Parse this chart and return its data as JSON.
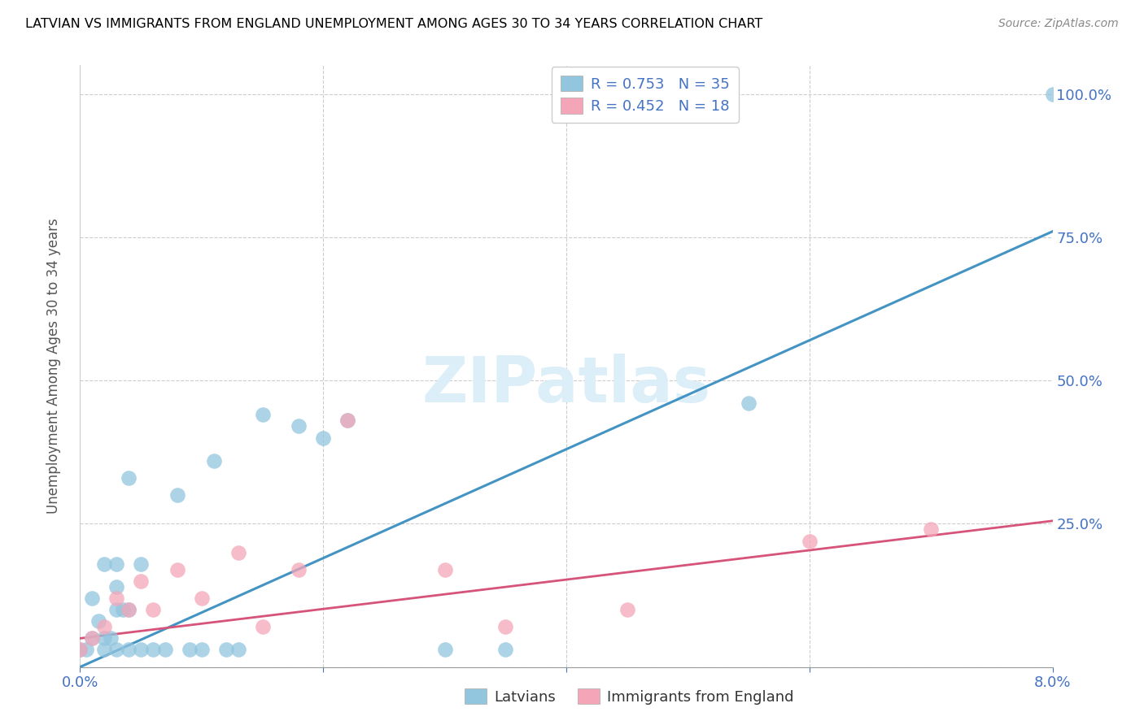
{
  "title": "LATVIAN VS IMMIGRANTS FROM ENGLAND UNEMPLOYMENT AMONG AGES 30 TO 34 YEARS CORRELATION CHART",
  "source": "Source: ZipAtlas.com",
  "ylabel": "Unemployment Among Ages 30 to 34 years",
  "xlim": [
    0.0,
    0.08
  ],
  "ylim": [
    0.0,
    1.05
  ],
  "yticks": [
    0.0,
    0.25,
    0.5,
    0.75,
    1.0
  ],
  "ytick_labels": [
    "",
    "25.0%",
    "50.0%",
    "75.0%",
    "100.0%"
  ],
  "blue_R": 0.753,
  "blue_N": 35,
  "pink_R": 0.452,
  "pink_N": 18,
  "blue_color": "#92c5de",
  "pink_color": "#f4a6b8",
  "blue_line_color": "#4393c3",
  "pink_line_color": "#d6537a",
  "watermark_color": "#dceef8",
  "latvian_x": [
    0.0,
    0.0005,
    0.001,
    0.001,
    0.0015,
    0.002,
    0.002,
    0.002,
    0.0025,
    0.003,
    0.003,
    0.003,
    0.003,
    0.0035,
    0.004,
    0.004,
    0.004,
    0.005,
    0.005,
    0.006,
    0.007,
    0.008,
    0.009,
    0.01,
    0.011,
    0.012,
    0.013,
    0.015,
    0.018,
    0.02,
    0.022,
    0.03,
    0.035,
    0.055,
    0.08
  ],
  "latvian_y": [
    0.03,
    0.03,
    0.05,
    0.12,
    0.08,
    0.03,
    0.05,
    0.18,
    0.05,
    0.03,
    0.1,
    0.14,
    0.18,
    0.1,
    0.03,
    0.1,
    0.33,
    0.03,
    0.18,
    0.03,
    0.03,
    0.3,
    0.03,
    0.03,
    0.36,
    0.03,
    0.03,
    0.44,
    0.42,
    0.4,
    0.43,
    0.03,
    0.03,
    0.46,
    1.0
  ],
  "england_x": [
    0.0,
    0.001,
    0.002,
    0.003,
    0.004,
    0.005,
    0.006,
    0.008,
    0.01,
    0.013,
    0.015,
    0.018,
    0.022,
    0.03,
    0.035,
    0.045,
    0.06,
    0.07
  ],
  "england_y": [
    0.03,
    0.05,
    0.07,
    0.12,
    0.1,
    0.15,
    0.1,
    0.17,
    0.12,
    0.2,
    0.07,
    0.17,
    0.43,
    0.17,
    0.07,
    0.1,
    0.22,
    0.24
  ],
  "blue_trend_x": [
    0.0,
    0.08
  ],
  "blue_trend_y": [
    0.0,
    0.76
  ],
  "pink_trend_x": [
    0.0,
    0.08
  ],
  "pink_trend_y": [
    0.05,
    0.255
  ]
}
